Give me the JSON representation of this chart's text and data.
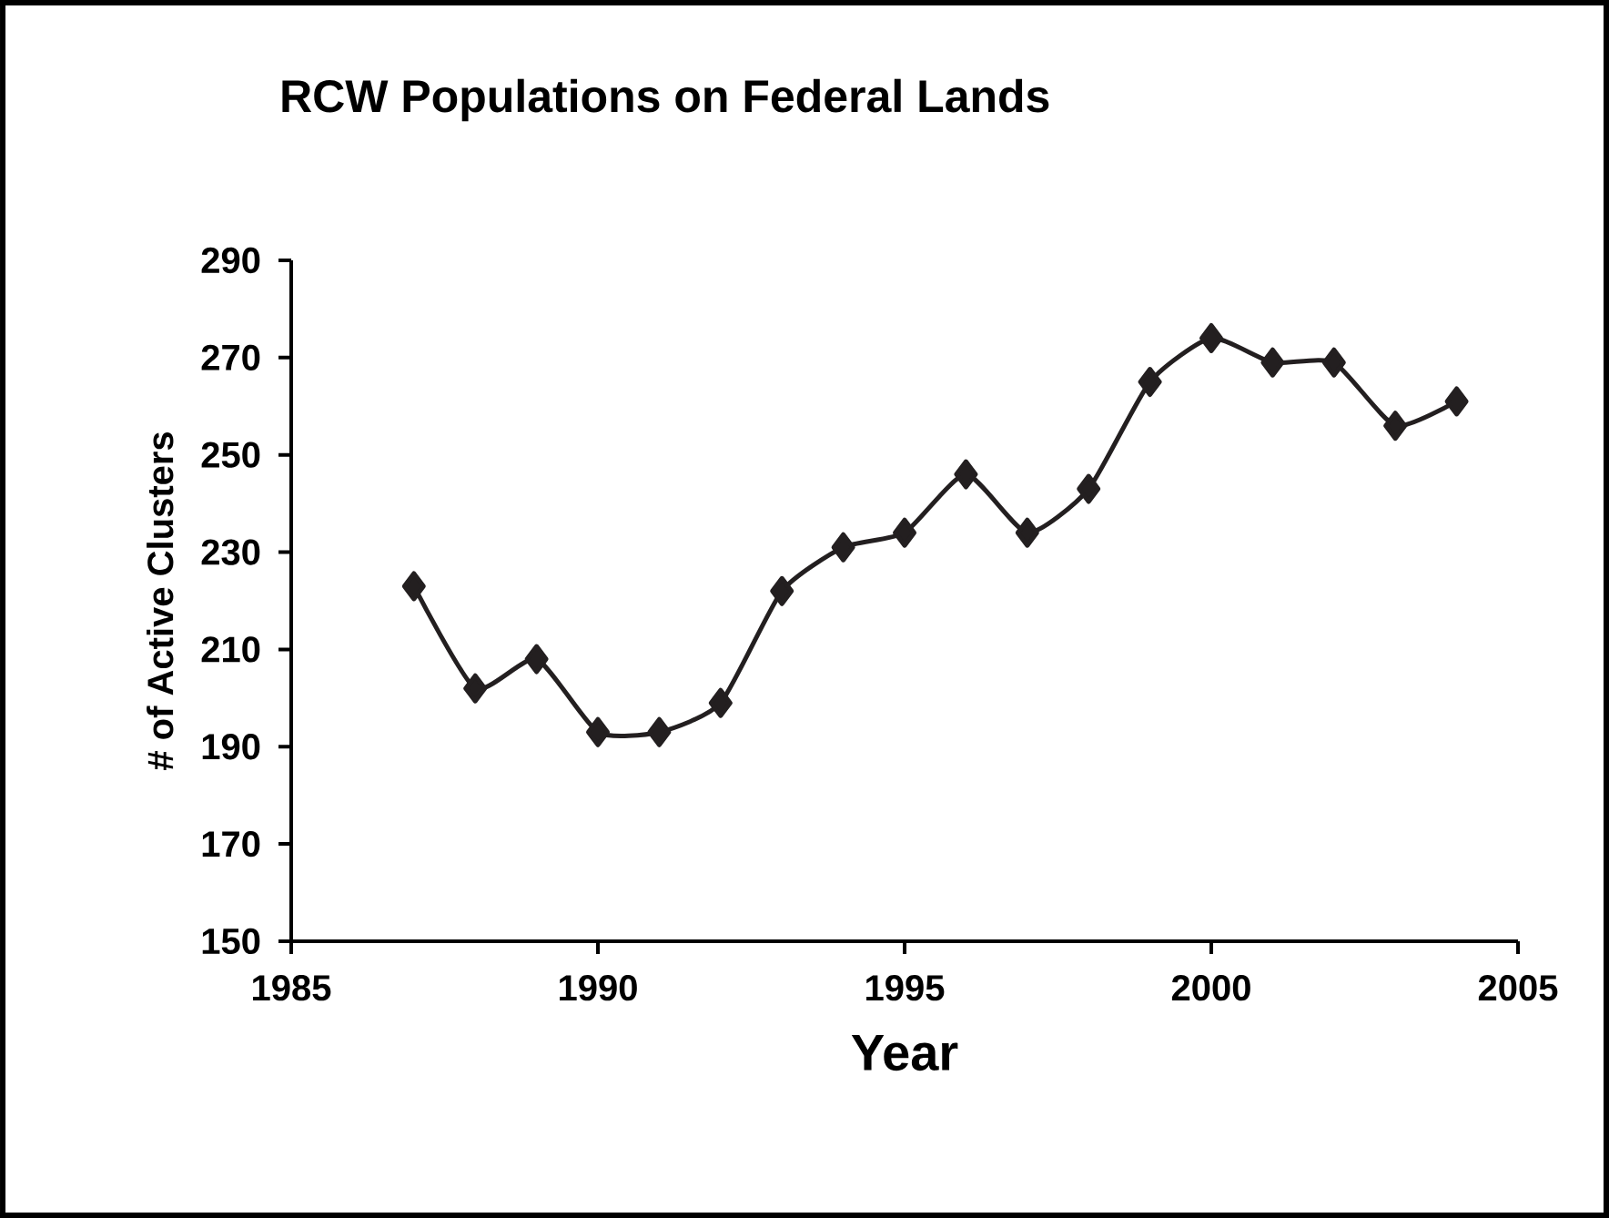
{
  "chart_data": {
    "type": "line",
    "title": "RCW Populations on Federal Lands",
    "xlabel": "Year",
    "ylabel": "# of Active Clusters",
    "x": [
      1987,
      1988,
      1989,
      1990,
      1991,
      1992,
      1993,
      1994,
      1995,
      1996,
      1997,
      1998,
      1999,
      2000,
      2001,
      2002,
      2003,
      2004
    ],
    "values": [
      223,
      202,
      208,
      193,
      193,
      199,
      222,
      231,
      234,
      246,
      234,
      243,
      265,
      274,
      269,
      269,
      256,
      261
    ],
    "color": "#231f20",
    "marker": "diamond",
    "xlim": [
      1985,
      2005
    ],
    "xticks": [
      1985,
      1990,
      1995,
      2000,
      2005
    ],
    "ylim": [
      150,
      290
    ],
    "yticks": [
      150,
      170,
      190,
      210,
      230,
      250,
      270,
      290
    ]
  }
}
